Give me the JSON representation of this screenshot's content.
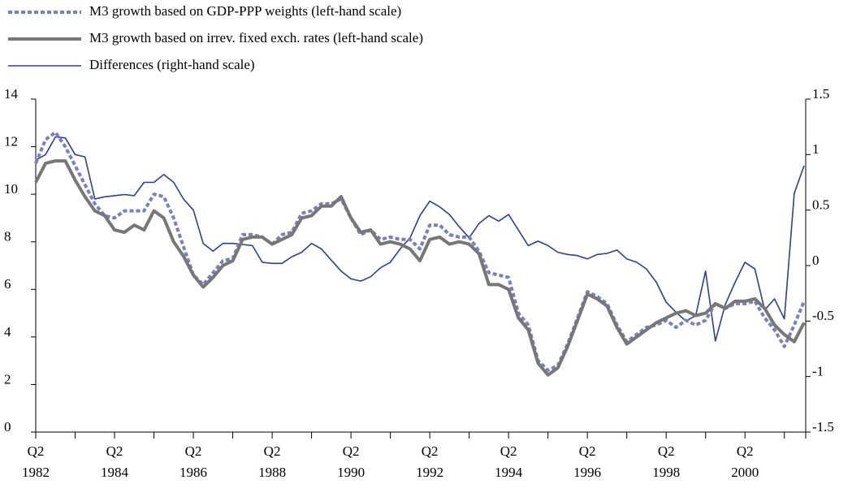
{
  "chart_data": {
    "type": "line",
    "categories": [
      "Q2 1982",
      null,
      null,
      null,
      null,
      null,
      null,
      null,
      "Q2 1984",
      null,
      null,
      null,
      null,
      null,
      null,
      null,
      "Q2 1986",
      null,
      null,
      null,
      null,
      null,
      null,
      null,
      "Q2 1988",
      null,
      null,
      null,
      null,
      null,
      null,
      null,
      "Q2 1990",
      null,
      null,
      null,
      null,
      null,
      null,
      null,
      "Q2 1992",
      null,
      null,
      null,
      null,
      null,
      null,
      null,
      "Q2 1994",
      null,
      null,
      null,
      null,
      null,
      null,
      null,
      "Q2 1996",
      null,
      null,
      null,
      null,
      null,
      null,
      null,
      "Q2 1998",
      null,
      null,
      null,
      null,
      null,
      null,
      null,
      "Q2 2000",
      null,
      null,
      null,
      null,
      null,
      null
    ],
    "series": [
      {
        "name": "M3 growth based on GDP-PPP weights (left-hand scale)",
        "color": "#7a7fc2",
        "dashed": true,
        "values": [
          11.3,
          12.3,
          12.6,
          12.0,
          11.2,
          10.4,
          9.6,
          9.1,
          9.0,
          9.3,
          9.3,
          9.3,
          10.0,
          9.9,
          9.0,
          7.8,
          6.6,
          6.2,
          6.7,
          7.2,
          7.3,
          8.3,
          8.3,
          8.2,
          7.9,
          8.3,
          8.4,
          9.2,
          9.3,
          9.6,
          9.6,
          9.8,
          9.0,
          8.3,
          8.5,
          8.1,
          8.2,
          8.1,
          8.1,
          7.7,
          8.7,
          8.7,
          8.3,
          8.2,
          8.2,
          7.6,
          6.7,
          6.6,
          6.5,
          5.0,
          4.5,
          3.0,
          2.6,
          2.8,
          3.7,
          4.8,
          5.9,
          5.7,
          5.4,
          4.5,
          3.8,
          4.1,
          4.4,
          4.5,
          4.7,
          4.4,
          4.7,
          4.5,
          4.7,
          5.4,
          5.2,
          5.4,
          5.4,
          5.5,
          4.8,
          4.3,
          3.6,
          4.5,
          5.5
        ]
      },
      {
        "name": "M3 growth based on irrev. fixed exch. rates (left-hand scale)",
        "color": "#777777",
        "dashed": false,
        "values": [
          10.5,
          11.3,
          11.4,
          11.4,
          10.6,
          9.9,
          9.3,
          9.1,
          8.5,
          8.4,
          8.7,
          8.5,
          9.3,
          9.0,
          8.0,
          7.4,
          6.6,
          6.1,
          6.5,
          7.0,
          7.2,
          8.1,
          8.2,
          8.2,
          7.9,
          8.1,
          8.3,
          9.0,
          9.1,
          9.5,
          9.5,
          9.9,
          9.0,
          8.4,
          8.5,
          7.9,
          8.0,
          7.9,
          7.7,
          7.2,
          8.1,
          8.2,
          7.9,
          8.0,
          7.9,
          7.5,
          6.2,
          6.2,
          6.0,
          4.8,
          4.3,
          2.9,
          2.4,
          2.7,
          3.6,
          4.7,
          5.8,
          5.6,
          5.3,
          4.4,
          3.7,
          4.0,
          4.3,
          4.6,
          4.8,
          5.0,
          5.1,
          4.9,
          5.0,
          5.4,
          5.2,
          5.5,
          5.5,
          5.6,
          5.2,
          4.5,
          4.1,
          3.8,
          4.6
        ]
      },
      {
        "name": "Differences (right-hand scale)",
        "color": "#2e3e9a",
        "dashed": false,
        "axis": "y2",
        "values": [
          0.95,
          1.0,
          1.16,
          1.15,
          1.0,
          0.98,
          0.6,
          0.62,
          0.63,
          0.64,
          0.63,
          0.75,
          0.75,
          0.82,
          0.75,
          0.6,
          0.5,
          0.2,
          0.13,
          0.2,
          0.2,
          0.19,
          0.18,
          0.03,
          0.02,
          0.02,
          0.08,
          0.12,
          0.2,
          0.15,
          0.05,
          -0.05,
          -0.12,
          -0.14,
          -0.1,
          -0.02,
          0.03,
          0.15,
          0.25,
          0.45,
          0.58,
          0.53,
          0.46,
          0.35,
          0.25,
          0.38,
          0.45,
          0.4,
          0.46,
          0.32,
          0.18,
          0.22,
          0.18,
          0.12,
          0.1,
          0.09,
          0.06,
          0.1,
          0.11,
          0.14,
          0.06,
          0.03,
          -0.03,
          -0.15,
          -0.33,
          -0.42,
          -0.5,
          -0.45,
          -0.05,
          -0.68,
          -0.35,
          -0.15,
          0.03,
          -0.03,
          -0.4,
          -0.3,
          -0.48,
          0.65,
          0.9
        ]
      }
    ],
    "ylim": [
      0,
      14
    ],
    "yticks": [
      0,
      2,
      4,
      6,
      8,
      10,
      12,
      14
    ],
    "y2lim": [
      -1.5,
      1.5
    ],
    "y2ticks": [
      -1.5,
      -1,
      -0.5,
      0,
      0.5,
      1,
      1.5
    ]
  }
}
